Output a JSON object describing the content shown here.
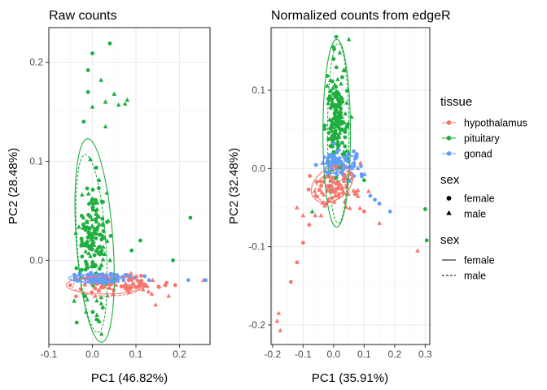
{
  "colors": {
    "hypothalamus": "#F8766D",
    "pituitary": "#1EAE3F",
    "gonad": "#619CFF"
  },
  "legend": {
    "tissue_title": "tissue",
    "tissue_items": [
      "hypothalamus",
      "pituitary",
      "gonad"
    ],
    "shape_title": "sex",
    "shape_items": [
      "female",
      "male"
    ],
    "linetype_title": "sex",
    "linetype_items": [
      "female",
      "male"
    ]
  },
  "chart_data": [
    {
      "type": "scatter",
      "title": "Raw counts",
      "xlabel": "PC1 (46.82%)",
      "ylabel": "PC2 (28.48%)",
      "xlim": [
        -0.1,
        0.27
      ],
      "ylim": [
        -0.085,
        0.235
      ],
      "xticks": [
        -0.1,
        0.0,
        0.1,
        0.2
      ],
      "xtick_labels": [
        "-0.1",
        "0.0",
        "0.1",
        "0.2"
      ],
      "yticks": [
        0.0,
        0.1,
        0.2
      ],
      "ytick_labels": [
        "0.0",
        "0.1",
        "0.2"
      ],
      "grid": true,
      "clusters": [
        {
          "tissue": "pituitary",
          "sex": "female",
          "count": 90,
          "center": [
            0.0,
            0.02
          ],
          "sd": [
            0.018,
            0.03
          ],
          "shape": "circle"
        },
        {
          "tissue": "pituitary",
          "sex": "male",
          "count": 80,
          "center": [
            0.005,
            0.02
          ],
          "sd": [
            0.018,
            0.03
          ],
          "shape": "triangle"
        },
        {
          "tissue": "hypothalamus",
          "sex": "female",
          "count": 40,
          "center": [
            0.06,
            -0.025
          ],
          "sd": [
            0.05,
            0.004
          ],
          "shape": "circle"
        },
        {
          "tissue": "hypothalamus",
          "sex": "male",
          "count": 40,
          "center": [
            0.07,
            -0.026
          ],
          "sd": [
            0.05,
            0.005
          ],
          "shape": "triangle"
        },
        {
          "tissue": "gonad",
          "sex": "female",
          "count": 45,
          "center": [
            0.02,
            -0.017
          ],
          "sd": [
            0.035,
            0.002
          ],
          "shape": "circle"
        },
        {
          "tissue": "gonad",
          "sex": "male",
          "count": 40,
          "center": [
            0.02,
            -0.019
          ],
          "sd": [
            0.035,
            0.002
          ],
          "shape": "triangle"
        }
      ],
      "extra_points": [
        {
          "x": 0.04,
          "y": 0.219,
          "tissue": "pituitary",
          "shape": "circle"
        },
        {
          "x": 0.0,
          "y": 0.209,
          "tissue": "pituitary",
          "shape": "circle"
        },
        {
          "x": -0.01,
          "y": 0.192,
          "tissue": "pituitary",
          "shape": "circle"
        },
        {
          "x": 0.02,
          "y": 0.182,
          "tissue": "pituitary",
          "shape": "triangle"
        },
        {
          "x": -0.01,
          "y": 0.17,
          "tissue": "pituitary",
          "shape": "circle"
        },
        {
          "x": 0.05,
          "y": 0.168,
          "tissue": "pituitary",
          "shape": "triangle"
        },
        {
          "x": 0.03,
          "y": 0.16,
          "tissue": "pituitary",
          "shape": "triangle"
        },
        {
          "x": 0.08,
          "y": 0.162,
          "tissue": "pituitary",
          "shape": "triangle"
        },
        {
          "x": 0.06,
          "y": 0.157,
          "tissue": "pituitary",
          "shape": "triangle"
        },
        {
          "x": 0.075,
          "y": 0.158,
          "tissue": "pituitary",
          "shape": "triangle"
        },
        {
          "x": 0.0,
          "y": 0.155,
          "tissue": "pituitary",
          "shape": "triangle"
        },
        {
          "x": -0.02,
          "y": 0.14,
          "tissue": "pituitary",
          "shape": "circle"
        },
        {
          "x": 0.03,
          "y": 0.135,
          "tissue": "pituitary",
          "shape": "triangle"
        },
        {
          "x": 0.225,
          "y": 0.043,
          "tissue": "pituitary",
          "shape": "circle"
        },
        {
          "x": 0.185,
          "y": 0.0,
          "tissue": "pituitary",
          "shape": "circle"
        },
        {
          "x": 0.11,
          "y": 0.02,
          "tissue": "pituitary",
          "shape": "circle"
        },
        {
          "x": 0.09,
          "y": 0.01,
          "tissue": "pituitary",
          "shape": "circle"
        },
        {
          "x": 0.19,
          "y": -0.025,
          "tissue": "hypothalamus",
          "shape": "circle"
        },
        {
          "x": 0.145,
          "y": -0.045,
          "tissue": "hypothalamus",
          "shape": "triangle"
        },
        {
          "x": 0.255,
          "y": -0.02,
          "tissue": "hypothalamus",
          "shape": "triangle"
        },
        {
          "x": 0.175,
          "y": -0.036,
          "tissue": "hypothalamus",
          "shape": "triangle"
        },
        {
          "x": 0.26,
          "y": -0.02,
          "tissue": "gonad",
          "shape": "circle"
        },
        {
          "x": 0.22,
          "y": -0.02,
          "tissue": "gonad",
          "shape": "circle"
        },
        {
          "x": 0.13,
          "y": -0.02,
          "tissue": "gonad",
          "shape": "circle"
        },
        {
          "x": 0.12,
          "y": -0.016,
          "tissue": "gonad",
          "shape": "circle"
        }
      ],
      "ellipses": [
        {
          "tissue": "pituitary",
          "sex": "female",
          "cx": 0.005,
          "cy": 0.02,
          "rx": 0.042,
          "ry": 0.103,
          "angle": -4
        },
        {
          "tissue": "pituitary",
          "sex": "male",
          "cx": -0.002,
          "cy": 0.017,
          "rx": 0.033,
          "ry": 0.09,
          "angle": -4
        },
        {
          "tissue": "hypothalamus",
          "sex": "female",
          "cx": 0.03,
          "cy": -0.025,
          "rx": 0.09,
          "ry": 0.009,
          "angle": 0
        },
        {
          "tissue": "hypothalamus",
          "sex": "male",
          "cx": 0.035,
          "cy": -0.026,
          "rx": 0.08,
          "ry": 0.01,
          "angle": 0
        },
        {
          "tissue": "gonad",
          "sex": "female",
          "cx": 0.005,
          "cy": -0.018,
          "rx": 0.06,
          "ry": 0.004,
          "angle": 0
        },
        {
          "tissue": "gonad",
          "sex": "male",
          "cx": 0.005,
          "cy": -0.019,
          "rx": 0.055,
          "ry": 0.004,
          "angle": 0
        }
      ]
    },
    {
      "type": "scatter",
      "title": "Normalized counts from edgeR",
      "xlabel": "PC1 (35.91%)",
      "ylabel": "PC2 (32.48%)",
      "xlim": [
        -0.205,
        0.315
      ],
      "ylim": [
        -0.225,
        0.18
      ],
      "xticks": [
        -0.2,
        -0.1,
        0.0,
        0.1,
        0.2,
        0.3
      ],
      "xtick_labels": [
        "-0.2",
        "-0.1",
        "0.0",
        "0.1",
        "0.2",
        "0.3"
      ],
      "yticks": [
        -0.2,
        -0.1,
        0.0,
        0.1
      ],
      "ytick_labels": [
        "-0.2",
        "-0.1",
        "0.0",
        "0.1"
      ],
      "grid": true,
      "clusters": [
        {
          "tissue": "pituitary",
          "sex": "female",
          "count": 90,
          "center": [
            0.01,
            0.055
          ],
          "sd": [
            0.016,
            0.035
          ],
          "shape": "circle"
        },
        {
          "tissue": "pituitary",
          "sex": "male",
          "count": 80,
          "center": [
            0.015,
            0.06
          ],
          "sd": [
            0.016,
            0.035
          ],
          "shape": "triangle"
        },
        {
          "tissue": "gonad",
          "sex": "female",
          "count": 45,
          "center": [
            0.02,
            0.005
          ],
          "sd": [
            0.03,
            0.01
          ],
          "shape": "circle"
        },
        {
          "tissue": "gonad",
          "sex": "male",
          "count": 40,
          "center": [
            0.02,
            0.005
          ],
          "sd": [
            0.03,
            0.01
          ],
          "shape": "triangle"
        },
        {
          "tissue": "hypothalamus",
          "sex": "female",
          "count": 40,
          "center": [
            0.0,
            -0.025
          ],
          "sd": [
            0.035,
            0.012
          ],
          "shape": "circle"
        },
        {
          "tissue": "hypothalamus",
          "sex": "male",
          "count": 40,
          "center": [
            0.01,
            -0.03
          ],
          "sd": [
            0.04,
            0.013
          ],
          "shape": "triangle"
        }
      ],
      "extra_points": [
        {
          "x": 0.05,
          "y": 0.165,
          "tissue": "pituitary",
          "shape": "triangle"
        },
        {
          "x": 0.0,
          "y": 0.155,
          "tissue": "pituitary",
          "shape": "circle"
        },
        {
          "x": 0.02,
          "y": 0.148,
          "tissue": "pituitary",
          "shape": "triangle"
        },
        {
          "x": 0.0,
          "y": 0.14,
          "tissue": "pituitary",
          "shape": "circle"
        },
        {
          "x": 0.3,
          "y": -0.052,
          "tissue": "pituitary",
          "shape": "circle"
        },
        {
          "x": 0.305,
          "y": -0.092,
          "tissue": "pituitary",
          "shape": "circle"
        },
        {
          "x": -0.07,
          "y": -0.055,
          "tissue": "pituitary",
          "shape": "triangle"
        },
        {
          "x": 0.1,
          "y": -0.015,
          "tissue": "pituitary",
          "shape": "circle"
        },
        {
          "x": 0.185,
          "y": -0.055,
          "tissue": "gonad",
          "shape": "circle"
        },
        {
          "x": 0.15,
          "y": -0.045,
          "tissue": "gonad",
          "shape": "circle"
        },
        {
          "x": 0.12,
          "y": -0.035,
          "tissue": "gonad",
          "shape": "circle"
        },
        {
          "x": 0.135,
          "y": -0.04,
          "tissue": "gonad",
          "shape": "circle"
        },
        {
          "x": 0.275,
          "y": -0.105,
          "tissue": "hypothalamus",
          "shape": "triangle"
        },
        {
          "x": 0.15,
          "y": -0.07,
          "tissue": "hypothalamus",
          "shape": "triangle"
        },
        {
          "x": 0.1,
          "y": -0.055,
          "tissue": "hypothalamus",
          "shape": "circle"
        },
        {
          "x": -0.185,
          "y": -0.195,
          "tissue": "hypothalamus",
          "shape": "triangle"
        },
        {
          "x": -0.18,
          "y": -0.185,
          "tissue": "hypothalamus",
          "shape": "triangle"
        },
        {
          "x": -0.175,
          "y": -0.207,
          "tissue": "hypothalamus",
          "shape": "triangle"
        },
        {
          "x": -0.14,
          "y": -0.145,
          "tissue": "hypothalamus",
          "shape": "circle"
        },
        {
          "x": -0.12,
          "y": -0.12,
          "tissue": "hypothalamus",
          "shape": "circle"
        },
        {
          "x": -0.1,
          "y": -0.095,
          "tissue": "hypothalamus",
          "shape": "circle"
        },
        {
          "x": -0.08,
          "y": -0.072,
          "tissue": "hypothalamus",
          "shape": "circle"
        },
        {
          "x": -0.06,
          "y": -0.06,
          "tissue": "hypothalamus",
          "shape": "triangle"
        },
        {
          "x": -0.1,
          "y": -0.06,
          "tissue": "hypothalamus",
          "shape": "triangle"
        },
        {
          "x": -0.12,
          "y": -0.05,
          "tissue": "hypothalamus",
          "shape": "triangle"
        }
      ],
      "ellipses": [
        {
          "tissue": "pituitary",
          "sex": "female",
          "cx": 0.01,
          "cy": 0.045,
          "rx": 0.045,
          "ry": 0.12,
          "angle": 0
        },
        {
          "tissue": "pituitary",
          "sex": "male",
          "cx": 0.015,
          "cy": 0.045,
          "rx": 0.035,
          "ry": 0.115,
          "angle": 0
        },
        {
          "tissue": "hypothalamus",
          "sex": "female",
          "cx": -0.005,
          "cy": -0.02,
          "rx": 0.075,
          "ry": 0.02,
          "angle": -35
        },
        {
          "tissue": "hypothalamus",
          "sex": "male",
          "cx": 0.0,
          "cy": -0.022,
          "rx": 0.065,
          "ry": 0.018,
          "angle": -35
        },
        {
          "tissue": "gonad",
          "sex": "female",
          "cx": 0.02,
          "cy": 0.005,
          "rx": 0.055,
          "ry": 0.008,
          "angle": -25
        },
        {
          "tissue": "gonad",
          "sex": "male",
          "cx": 0.02,
          "cy": 0.005,
          "rx": 0.05,
          "ry": 0.007,
          "angle": -25
        }
      ]
    }
  ]
}
